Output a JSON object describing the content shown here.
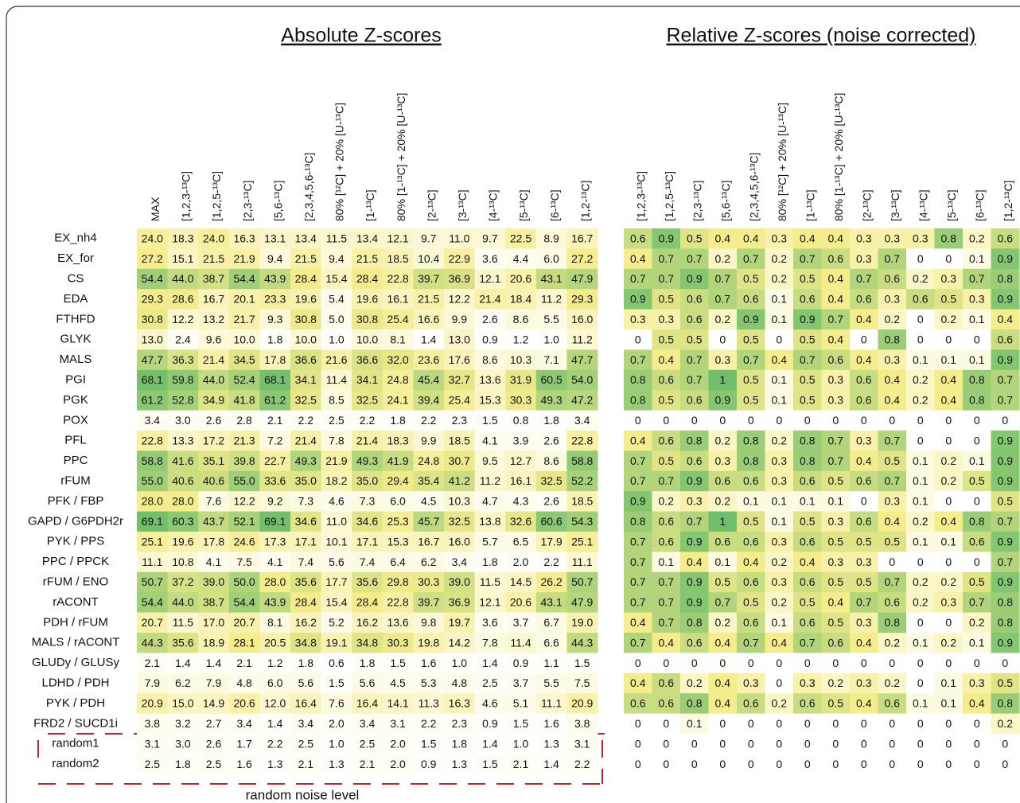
{
  "title_absolute": "Absolute Z-scores",
  "title_relative": "Relative Z-scores (noise corrected)",
  "absolute_columns": [
    "MAX",
    "[1,2,3-¹³C]",
    "[1,2,5-¹³C]",
    "[2,3-¹³C]",
    "[5,6-¹³C]",
    "[2,3,4,5,6-¹³C]",
    "80% [¹²C] + 20% [U-¹³C]",
    "[1-¹³C]",
    "80% [1-¹³C] + 20% [U-¹³C]",
    "[2-¹³C]",
    "[3-¹³C]",
    "[4-¹³C]",
    "[5-¹³C]",
    "[6-¹³C]",
    "[1,2-¹³C]"
  ],
  "relative_columns": [
    "[1,2,3-¹³C]",
    "[1,2,5-¹³C]",
    "[2,3-¹³C]",
    "[5,6-¹³C]",
    "[2,3,4,5,6-¹³C]",
    "80% [¹²C] + 20% [U-¹³C]",
    "[1-¹³C]",
    "80% [1-¹³C] + 20% [U-¹³C]",
    "[2-¹³C]",
    "[3-¹³C]",
    "[4-¹³C]",
    "[5-¹³C]",
    "[6-¹³C]",
    "[1,2-¹³C]"
  ],
  "rows": [
    {
      "label": "EX_nh4",
      "absolute": [
        "24.0",
        "18.3",
        "24.0",
        "16.3",
        "13.1",
        "13.4",
        "11.5",
        "13.4",
        "12.1",
        "9.7",
        "11.0",
        "9.7",
        "22.5",
        "8.9",
        "16.7"
      ],
      "relative": [
        "0.6",
        "0.9",
        "0.5",
        "0.4",
        "0.4",
        "0.3",
        "0.4",
        "0.4",
        "0.3",
        "0.3",
        "0.3",
        "0.8",
        "0.2",
        "0.6"
      ]
    },
    {
      "label": "EX_for",
      "absolute": [
        "27.2",
        "15.1",
        "21.5",
        "21.9",
        "9.4",
        "21.5",
        "9.4",
        "21.5",
        "18.5",
        "10.4",
        "22.9",
        "3.6",
        "4.4",
        "6.0",
        "27.2"
      ],
      "relative": [
        "0.4",
        "0.7",
        "0.7",
        "0.2",
        "0.7",
        "0.2",
        "0.7",
        "0.6",
        "0.3",
        "0.7",
        "0",
        "0",
        "0.1",
        "0.9"
      ]
    },
    {
      "label": "CS",
      "absolute": [
        "54.4",
        "44.0",
        "38.7",
        "54.4",
        "43.9",
        "28.4",
        "15.4",
        "28.4",
        "22.8",
        "39.7",
        "36.9",
        "12.1",
        "20.6",
        "43.1",
        "47.9"
      ],
      "relative": [
        "0.7",
        "0.7",
        "0.9",
        "0.7",
        "0.5",
        "0.2",
        "0.5",
        "0.4",
        "0.7",
        "0.6",
        "0.2",
        "0.3",
        "0.7",
        "0.8"
      ]
    },
    {
      "label": "EDA",
      "absolute": [
        "29.3",
        "28.6",
        "16.7",
        "20.1",
        "23.3",
        "19.6",
        "5.4",
        "19.6",
        "16.1",
        "21.5",
        "12.2",
        "21.4",
        "18.4",
        "11.2",
        "29.3"
      ],
      "relative": [
        "0.9",
        "0.5",
        "0.6",
        "0.7",
        "0.6",
        "0.1",
        "0.6",
        "0.4",
        "0.6",
        "0.3",
        "0.6",
        "0.5",
        "0.3",
        "0.9"
      ]
    },
    {
      "label": "FTHFD",
      "absolute": [
        "30.8",
        "12.2",
        "13.2",
        "21.7",
        "9.3",
        "30.8",
        "5.0",
        "30.8",
        "25.4",
        "16.6",
        "9.9",
        "2.6",
        "8.6",
        "5.5",
        "16.0"
      ],
      "relative": [
        "0.3",
        "0.3",
        "0.6",
        "0.2",
        "0.9",
        "0.1",
        "0.9",
        "0.7",
        "0.4",
        "0.2",
        "0",
        "0.2",
        "0.1",
        "0.4"
      ]
    },
    {
      "label": "GLYK",
      "absolute": [
        "13.0",
        "2.4",
        "9.6",
        "10.0",
        "1.8",
        "10.0",
        "1.0",
        "10.0",
        "8.1",
        "1.4",
        "13.0",
        "0.9",
        "1.2",
        "1.0",
        "11.2"
      ],
      "relative": [
        "0",
        "0.5",
        "0.5",
        "0",
        "0.5",
        "0",
        "0.5",
        "0.4",
        "0",
        "0.8",
        "0",
        "0",
        "0",
        "0.6"
      ]
    },
    {
      "label": "MALS",
      "absolute": [
        "47.7",
        "36.3",
        "21.4",
        "34.5",
        "17.8",
        "36.6",
        "21.6",
        "36.6",
        "32.0",
        "23.6",
        "17.6",
        "8.6",
        "10.3",
        "7.1",
        "47.7"
      ],
      "relative": [
        "0.7",
        "0.4",
        "0.7",
        "0.3",
        "0.7",
        "0.4",
        "0.7",
        "0.6",
        "0.4",
        "0.3",
        "0.1",
        "0.1",
        "0.1",
        "0.9"
      ]
    },
    {
      "label": "PGI",
      "absolute": [
        "68.1",
        "59.8",
        "44.0",
        "52.4",
        "68.1",
        "34.1",
        "11.4",
        "34.1",
        "24.8",
        "45.4",
        "32.7",
        "13.6",
        "31.9",
        "60.5",
        "54.0"
      ],
      "relative": [
        "0.8",
        "0.6",
        "0.7",
        "1",
        "0.5",
        "0.1",
        "0.5",
        "0.3",
        "0.6",
        "0.4",
        "0.2",
        "0.4",
        "0.8",
        "0.7"
      ]
    },
    {
      "label": "PGK",
      "absolute": [
        "61.2",
        "52.8",
        "34.9",
        "41.8",
        "61.2",
        "32.5",
        "8.5",
        "32.5",
        "24.1",
        "39.4",
        "25.4",
        "15.3",
        "30.3",
        "49.3",
        "47.2"
      ],
      "relative": [
        "0.8",
        "0.5",
        "0.6",
        "0.9",
        "0.5",
        "0.1",
        "0.5",
        "0.3",
        "0.6",
        "0.4",
        "0.2",
        "0.4",
        "0.8",
        "0.7"
      ]
    },
    {
      "label": "POX",
      "absolute": [
        "3.4",
        "3.0",
        "2.6",
        "2.8",
        "2.1",
        "2.2",
        "2.5",
        "2.2",
        "1.8",
        "2.2",
        "2.3",
        "1.5",
        "0.8",
        "1.8",
        "3.4"
      ],
      "relative": [
        "0",
        "0",
        "0",
        "0",
        "0",
        "0",
        "0",
        "0",
        "0",
        "0",
        "0",
        "0",
        "0",
        "0"
      ]
    },
    {
      "label": "PFL",
      "absolute": [
        "22.8",
        "13.3",
        "17.2",
        "21.3",
        "7.2",
        "21.4",
        "7.8",
        "21.4",
        "18.3",
        "9.9",
        "18.5",
        "4.1",
        "3.9",
        "2.6",
        "22.8"
      ],
      "relative": [
        "0.4",
        "0.6",
        "0.8",
        "0.2",
        "0.8",
        "0.2",
        "0.8",
        "0.7",
        "0.3",
        "0.7",
        "0",
        "0",
        "0",
        "0.9"
      ]
    },
    {
      "label": "PPC",
      "absolute": [
        "58.8",
        "41.6",
        "35.1",
        "39.8",
        "22.7",
        "49.3",
        "21.9",
        "49.3",
        "41.9",
        "24.8",
        "30.7",
        "9.5",
        "12.7",
        "8.6",
        "58.8"
      ],
      "relative": [
        "0.7",
        "0.5",
        "0.6",
        "0.3",
        "0.8",
        "0.3",
        "0.8",
        "0.7",
        "0.4",
        "0.5",
        "0.1",
        "0.2",
        "0.1",
        "0.9"
      ]
    },
    {
      "label": "rFUM",
      "absolute": [
        "55.0",
        "40.6",
        "40.6",
        "55.0",
        "33.6",
        "35.0",
        "18.2",
        "35.0",
        "29.4",
        "35.4",
        "41.2",
        "11.2",
        "16.1",
        "32.5",
        "52.2"
      ],
      "relative": [
        "0.7",
        "0.7",
        "0.9",
        "0.6",
        "0.6",
        "0.3",
        "0.6",
        "0.5",
        "0.6",
        "0.7",
        "0.1",
        "0.2",
        "0.5",
        "0.9"
      ]
    },
    {
      "label": "PFK / FBP",
      "absolute": [
        "28.0",
        "28.0",
        "7.6",
        "12.2",
        "9.2",
        "7.3",
        "4.6",
        "7.3",
        "6.0",
        "4.5",
        "10.3",
        "4.7",
        "4.3",
        "2.6",
        "18.5"
      ],
      "relative": [
        "0.9",
        "0.2",
        "0.3",
        "0.2",
        "0.1",
        "0.1",
        "0.1",
        "0.1",
        "0",
        "0.3",
        "0.1",
        "0",
        "0",
        "0.5"
      ]
    },
    {
      "label": "GAPD / G6PDH2r",
      "absolute": [
        "69.1",
        "60.3",
        "43.7",
        "52.1",
        "69.1",
        "34.6",
        "11.0",
        "34.6",
        "25.3",
        "45.7",
        "32.5",
        "13.8",
        "32.6",
        "60.6",
        "54.3"
      ],
      "relative": [
        "0.8",
        "0.6",
        "0.7",
        "1",
        "0.5",
        "0.1",
        "0.5",
        "0.3",
        "0.6",
        "0.4",
        "0.2",
        "0.4",
        "0.8",
        "0.7"
      ]
    },
    {
      "label": "PYK / PPS",
      "absolute": [
        "25.1",
        "19.6",
        "17.8",
        "24.6",
        "17.3",
        "17.1",
        "10.1",
        "17.1",
        "15.3",
        "16.7",
        "16.0",
        "5.7",
        "6.5",
        "17.9",
        "25.1"
      ],
      "relative": [
        "0.7",
        "0.6",
        "0.9",
        "0.6",
        "0.6",
        "0.3",
        "0.6",
        "0.5",
        "0.5",
        "0.5",
        "0.1",
        "0.1",
        "0.6",
        "0.9"
      ]
    },
    {
      "label": "PPC / PPCK",
      "absolute": [
        "11.1",
        "10.8",
        "4.1",
        "7.5",
        "4.1",
        "7.4",
        "5.6",
        "7.4",
        "6.4",
        "6.2",
        "3.4",
        "1.8",
        "2.0",
        "2.2",
        "11.1"
      ],
      "relative": [
        "0.7",
        "0.1",
        "0.4",
        "0.1",
        "0.4",
        "0.2",
        "0.4",
        "0.3",
        "0.3",
        "0",
        "0",
        "0",
        "0",
        "0.7"
      ]
    },
    {
      "label": "rFUM / ENO",
      "absolute": [
        "50.7",
        "37.2",
        "39.0",
        "50.0",
        "28.0",
        "35.6",
        "17.7",
        "35.6",
        "29.8",
        "30.3",
        "39.0",
        "11.5",
        "14.5",
        "26.2",
        "50.7"
      ],
      "relative": [
        "0.7",
        "0.7",
        "0.9",
        "0.5",
        "0.6",
        "0.3",
        "0.6",
        "0.5",
        "0.5",
        "0.7",
        "0.2",
        "0.2",
        "0.5",
        "0.9"
      ]
    },
    {
      "label": "rACONT",
      "absolute": [
        "54.4",
        "44.0",
        "38.7",
        "54.4",
        "43.9",
        "28.4",
        "15.4",
        "28.4",
        "22.8",
        "39.7",
        "36.9",
        "12.1",
        "20.6",
        "43.1",
        "47.9"
      ],
      "relative": [
        "0.7",
        "0.7",
        "0.9",
        "0.7",
        "0.5",
        "0.2",
        "0.5",
        "0.4",
        "0.7",
        "0.6",
        "0.2",
        "0.3",
        "0.7",
        "0.8"
      ]
    },
    {
      "label": "PDH / rFUM",
      "absolute": [
        "20.7",
        "11.5",
        "17.0",
        "20.7",
        "8.1",
        "16.2",
        "5.2",
        "16.2",
        "13.6",
        "9.8",
        "19.7",
        "3.6",
        "3.7",
        "6.7",
        "19.0"
      ],
      "relative": [
        "0.4",
        "0.7",
        "0.8",
        "0.2",
        "0.6",
        "0.1",
        "0.6",
        "0.5",
        "0.3",
        "0.8",
        "0",
        "0",
        "0.2",
        "0.8"
      ]
    },
    {
      "label": "MALS / rACONT",
      "absolute": [
        "44.3",
        "35.6",
        "18.9",
        "28.1",
        "20.5",
        "34.8",
        "19.1",
        "34.8",
        "30.3",
        "19.8",
        "14.2",
        "7.8",
        "11.4",
        "6.6",
        "44.3"
      ],
      "relative": [
        "0.7",
        "0.4",
        "0.6",
        "0.4",
        "0.7",
        "0.4",
        "0.7",
        "0.6",
        "0.4",
        "0.2",
        "0.1",
        "0.2",
        "0.1",
        "0.9"
      ]
    },
    {
      "label": "GLUDy / GLUSy",
      "absolute": [
        "2.1",
        "1.4",
        "1.4",
        "2.1",
        "1.2",
        "1.8",
        "0.6",
        "1.8",
        "1.5",
        "1.6",
        "1.0",
        "1.4",
        "0.9",
        "1.1",
        "1.5"
      ],
      "relative": [
        "0",
        "0",
        "0",
        "0",
        "0",
        "0",
        "0",
        "0",
        "0",
        "0",
        "0",
        "0",
        "0",
        "0"
      ]
    },
    {
      "label": "LDHD / PDH",
      "absolute": [
        "7.9",
        "6.2",
        "7.9",
        "4.8",
        "6.0",
        "5.6",
        "1.5",
        "5.6",
        "4.5",
        "5.3",
        "4.8",
        "2.5",
        "3.7",
        "5.5",
        "7.5"
      ],
      "relative": [
        "0.4",
        "0.6",
        "0.2",
        "0.4",
        "0.3",
        "0",
        "0.3",
        "0.2",
        "0.3",
        "0.2",
        "0",
        "0.1",
        "0.3",
        "0.5"
      ]
    },
    {
      "label": "PYK / PDH",
      "absolute": [
        "20.9",
        "15.0",
        "14.9",
        "20.6",
        "12.0",
        "16.4",
        "7.6",
        "16.4",
        "14.1",
        "11.3",
        "16.3",
        "4.6",
        "5.1",
        "11.1",
        "20.9"
      ],
      "relative": [
        "0.6",
        "0.6",
        "0.8",
        "0.4",
        "0.6",
        "0.2",
        "0.6",
        "0.5",
        "0.4",
        "0.6",
        "0.1",
        "0.1",
        "0.4",
        "0.8"
      ]
    },
    {
      "label": "FRD2 / SUCD1i",
      "absolute": [
        "3.8",
        "3.2",
        "2.7",
        "3.4",
        "1.4",
        "3.4",
        "2.0",
        "3.4",
        "3.1",
        "2.2",
        "2.3",
        "0.9",
        "1.5",
        "1.6",
        "3.8"
      ],
      "relative": [
        "0",
        "0",
        "0.1",
        "0",
        "0",
        "0",
        "0",
        "0",
        "0",
        "0",
        "0",
        "0",
        "0",
        "0.2"
      ]
    },
    {
      "label": "random1",
      "absolute": [
        "3.1",
        "3.0",
        "2.6",
        "1.7",
        "2.2",
        "2.5",
        "1.0",
        "2.5",
        "2.0",
        "1.5",
        "1.8",
        "1.4",
        "1.0",
        "1.3",
        "3.1"
      ],
      "relative": [
        "0",
        "0",
        "0",
        "0",
        "0",
        "0",
        "0",
        "0",
        "0",
        "0",
        "0",
        "0",
        "0",
        "0"
      ]
    },
    {
      "label": "random2",
      "absolute": [
        "2.5",
        "1.8",
        "2.5",
        "1.6",
        "1.3",
        "2.1",
        "1.3",
        "2.1",
        "2.0",
        "0.9",
        "1.3",
        "1.5",
        "2.1",
        "1.4",
        "2.2"
      ],
      "relative": [
        "0",
        "0",
        "0",
        "0",
        "0",
        "0",
        "0",
        "0",
        "0",
        "0",
        "0",
        "0",
        "0",
        "0"
      ]
    }
  ],
  "annotation": "random noise level"
}
